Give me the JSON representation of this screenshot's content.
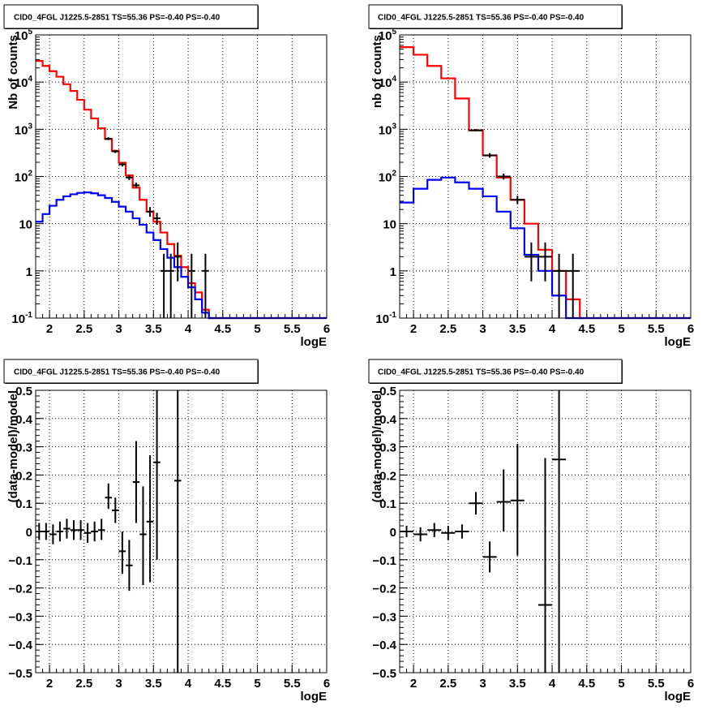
{
  "chart_data": [
    {
      "type": "line",
      "title": "CID0_4FGL J1225.5-2851 TS=55.36 PS=-0.40 PS=-0.40",
      "xlabel": "logE",
      "ylabel": "Nb of counts",
      "xlim": [
        1.8,
        6
      ],
      "ylim": [
        0.1,
        100000
      ],
      "yscale": "log",
      "grid": true,
      "xticks": [
        "2",
        "2.5",
        "3",
        "3.5",
        "4",
        "4.5",
        "5",
        "5.5",
        "6"
      ],
      "yticks": [
        "10^-1",
        "1",
        "10",
        "10^2",
        "10^3",
        "10^4",
        "10^5"
      ],
      "bin_edges": [
        1.8,
        1.9,
        2.0,
        2.1,
        2.2,
        2.3,
        2.4,
        2.5,
        2.6,
        2.7,
        2.8,
        2.9,
        3.0,
        3.1,
        3.2,
        3.3,
        3.4,
        3.5,
        3.6,
        3.7,
        3.8,
        3.9,
        4.0,
        4.1,
        4.2,
        4.3,
        4.4,
        4.5,
        4.6,
        4.7,
        4.8,
        4.9,
        5.0,
        5.1,
        5.2,
        5.3,
        5.4,
        5.5,
        5.6,
        5.7,
        5.8,
        5.9,
        6.0
      ],
      "series": [
        {
          "color": "#ff0000",
          "values": [
            28000,
            22000,
            17000,
            13000,
            9000,
            6500,
            4200,
            2600,
            1700,
            1050,
            620,
            350,
            195,
            105,
            58,
            32,
            18,
            11,
            6.5,
            3.7,
            2.1,
            1.2,
            0.55,
            0.35,
            0.15,
            0.08,
            0.08,
            0.08,
            0.08,
            0.08,
            0.08,
            0.08,
            0.08,
            0.08,
            0.08,
            0.08,
            0.08,
            0.08,
            0.08,
            0.08,
            0.08,
            0.08
          ]
        },
        {
          "color": "#0000ff",
          "values": [
            11,
            16,
            24,
            32,
            38,
            42,
            45,
            46,
            44,
            40,
            35,
            29,
            23,
            18,
            13,
            9.5,
            6.5,
            4.5,
            2.9,
            1.9,
            1.2,
            0.75,
            0.45,
            0.25,
            0.13,
            0.1,
            0.1,
            0.1,
            0.1,
            0.1,
            0.1,
            0.1,
            0.1,
            0.1,
            0.1,
            0.1,
            0.1,
            0.1,
            0.1,
            0.1,
            0.1,
            0.1
          ]
        }
      ],
      "points": [
        {
          "x": 2.85,
          "y": 630,
          "ylo": 590,
          "yhi": 675
        },
        {
          "x": 2.95,
          "y": 340,
          "ylo": 315,
          "yhi": 365
        },
        {
          "x": 3.05,
          "y": 180,
          "ylo": 162,
          "yhi": 200
        },
        {
          "x": 3.15,
          "y": 95,
          "ylo": 84,
          "yhi": 107
        },
        {
          "x": 3.25,
          "y": 65,
          "ylo": 57,
          "yhi": 74
        },
        {
          "x": 3.45,
          "y": 18,
          "ylo": 14,
          "yhi": 22.5
        },
        {
          "x": 3.55,
          "y": 13,
          "ylo": 9.5,
          "yhi": 17
        },
        {
          "x": 3.65,
          "y": 1,
          "ylo": 0.1,
          "yhi": 2.3
        },
        {
          "x": 3.75,
          "y": 1,
          "ylo": 0.1,
          "yhi": 2.3
        },
        {
          "x": 3.85,
          "y": 2,
          "ylo": 0.6,
          "yhi": 4
        },
        {
          "x": 4.05,
          "y": 1,
          "ylo": 0.1,
          "yhi": 2.3
        },
        {
          "x": 4.25,
          "y": 1,
          "ylo": 0.1,
          "yhi": 2.3
        }
      ]
    },
    {
      "type": "line",
      "title": "CID0_4FGL J1225.5-2851 TS=55.36 PS=-0.40 PS=-0.40",
      "xlabel": "logE",
      "ylabel": "nb of counts",
      "xlim": [
        1.8,
        6
      ],
      "ylim": [
        0.1,
        100000
      ],
      "yscale": "log",
      "grid": true,
      "xticks": [
        "2",
        "2.5",
        "3",
        "3.5",
        "4",
        "4.5",
        "5",
        "5.5",
        "6"
      ],
      "yticks": [
        "10^-1",
        "1",
        "10",
        "10^2",
        "10^3",
        "10^4",
        "10^5"
      ],
      "bin_edges": [
        1.8,
        2.0,
        2.2,
        2.4,
        2.6,
        2.8,
        3.0,
        3.2,
        3.4,
        3.6,
        3.8,
        4.0,
        4.2,
        4.4,
        4.6,
        4.8,
        5.0,
        5.2,
        5.4,
        5.6,
        5.8,
        6.0
      ],
      "series": [
        {
          "color": "#ff0000",
          "values": [
            55000,
            38000,
            22000,
            12000,
            4500,
            950,
            280,
            95,
            32,
            10,
            2.8,
            1,
            0.25,
            0.1,
            0.1,
            0.1,
            0.1,
            0.1,
            0.1,
            0.1,
            0.1
          ]
        },
        {
          "color": "#0000ff",
          "values": [
            28,
            55,
            85,
            95,
            75,
            55,
            38,
            18,
            8,
            2.2,
            1,
            0.3,
            0.1,
            0.1,
            0.1,
            0.1,
            0.1,
            0.1,
            0.1,
            0.1,
            0.1
          ]
        }
      ],
      "points": [
        {
          "x": 2.9,
          "y": 950,
          "ylo": 900,
          "yhi": 1010
        },
        {
          "x": 3.1,
          "y": 280,
          "ylo": 250,
          "yhi": 312
        },
        {
          "x": 3.3,
          "y": 100,
          "ylo": 86,
          "yhi": 115
        },
        {
          "x": 3.5,
          "y": 32,
          "ylo": 26,
          "yhi": 39
        },
        {
          "x": 3.7,
          "y": 2,
          "ylo": 0.6,
          "yhi": 4
        },
        {
          "x": 3.9,
          "y": 2,
          "ylo": 0.6,
          "yhi": 4
        },
        {
          "x": 4.1,
          "y": 1,
          "ylo": 0.1,
          "yhi": 2.3
        },
        {
          "x": 4.3,
          "y": 1,
          "ylo": 0.1,
          "yhi": 2.3
        }
      ]
    },
    {
      "type": "scatter",
      "title": "CID0_4FGL J1225.5-2851 TS=55.36 PS=-0.40 PS=-0.40",
      "xlabel": "logE",
      "ylabel": "(data-model)/model",
      "xlim": [
        1.8,
        6
      ],
      "ylim": [
        -0.5,
        0.5
      ],
      "grid": true,
      "xticks": [
        "2",
        "2.5",
        "3",
        "3.5",
        "4",
        "4.5",
        "5",
        "5.5",
        "6"
      ],
      "yticks": [
        "-0.5",
        "-0.4",
        "-0.3",
        "-0.2",
        "-0.1",
        "0",
        "0.1",
        "0.2",
        "0.3",
        "0.4",
        "0.5"
      ],
      "xerr": 0.05,
      "points": [
        {
          "x": 1.85,
          "y": 0.0,
          "ylo": -0.03,
          "yhi": 0.03
        },
        {
          "x": 1.95,
          "y": 0.0,
          "ylo": -0.03,
          "yhi": 0.03
        },
        {
          "x": 2.05,
          "y": -0.01,
          "ylo": -0.045,
          "yhi": 0.025
        },
        {
          "x": 2.15,
          "y": 0.0,
          "ylo": -0.035,
          "yhi": 0.035
        },
        {
          "x": 2.25,
          "y": 0.01,
          "ylo": -0.025,
          "yhi": 0.045
        },
        {
          "x": 2.35,
          "y": 0.005,
          "ylo": -0.03,
          "yhi": 0.04
        },
        {
          "x": 2.45,
          "y": 0.005,
          "ylo": -0.03,
          "yhi": 0.04
        },
        {
          "x": 2.55,
          "y": -0.005,
          "ylo": -0.04,
          "yhi": 0.03
        },
        {
          "x": 2.65,
          "y": 0.0,
          "ylo": -0.035,
          "yhi": 0.035
        },
        {
          "x": 2.75,
          "y": 0.005,
          "ylo": -0.03,
          "yhi": 0.045
        },
        {
          "x": 2.85,
          "y": 0.12,
          "ylo": 0.08,
          "yhi": 0.17
        },
        {
          "x": 2.95,
          "y": 0.075,
          "ylo": 0.03,
          "yhi": 0.12
        },
        {
          "x": 3.05,
          "y": -0.07,
          "ylo": -0.15,
          "yhi": 0.0
        },
        {
          "x": 3.15,
          "y": -0.12,
          "ylo": -0.21,
          "yhi": -0.03
        },
        {
          "x": 3.25,
          "y": 0.175,
          "ylo": 0.03,
          "yhi": 0.32
        },
        {
          "x": 3.35,
          "y": -0.01,
          "ylo": -0.19,
          "yhi": 0.16
        },
        {
          "x": 3.45,
          "y": 0.035,
          "ylo": -0.18,
          "yhi": 0.27
        },
        {
          "x": 3.55,
          "y": 0.245,
          "ylo": -0.1,
          "yhi": 0.5
        },
        {
          "x": 3.85,
          "y": 0.18,
          "ylo": -0.5,
          "yhi": 0.5
        }
      ]
    },
    {
      "type": "scatter",
      "title": "CID0_4FGL J1225.5-2851 TS=55.36 PS=-0.40 PS=-0.40",
      "xlabel": "logE",
      "ylabel": "(data-model)/model",
      "xlim": [
        1.8,
        6
      ],
      "ylim": [
        -0.5,
        0.5
      ],
      "grid": true,
      "xticks": [
        "2",
        "2.5",
        "3",
        "3.5",
        "4",
        "4.5",
        "5",
        "5.5",
        "6"
      ],
      "yticks": [
        "-0.5",
        "-0.4",
        "-0.3",
        "-0.2",
        "-0.1",
        "0",
        "0.1",
        "0.2",
        "0.3",
        "0.4",
        "0.5"
      ],
      "xerr": 0.1,
      "points": [
        {
          "x": 1.9,
          "y": 0.0,
          "ylo": -0.02,
          "yhi": 0.02
        },
        {
          "x": 2.1,
          "y": -0.01,
          "ylo": -0.035,
          "yhi": 0.015
        },
        {
          "x": 2.3,
          "y": 0.005,
          "ylo": -0.02,
          "yhi": 0.03
        },
        {
          "x": 2.5,
          "y": -0.005,
          "ylo": -0.03,
          "yhi": 0.02
        },
        {
          "x": 2.7,
          "y": 0.0,
          "ylo": -0.025,
          "yhi": 0.025
        },
        {
          "x": 2.9,
          "y": 0.1,
          "ylo": 0.06,
          "yhi": 0.14
        },
        {
          "x": 3.1,
          "y": -0.09,
          "ylo": -0.145,
          "yhi": -0.035
        },
        {
          "x": 3.3,
          "y": 0.105,
          "ylo": 0.0,
          "yhi": 0.22
        },
        {
          "x": 3.5,
          "y": 0.11,
          "ylo": -0.085,
          "yhi": 0.31
        },
        {
          "x": 3.9,
          "y": -0.26,
          "ylo": -0.5,
          "yhi": 0.26
        },
        {
          "x": 4.1,
          "y": 0.255,
          "ylo": -0.5,
          "yhi": 0.5
        }
      ]
    }
  ]
}
